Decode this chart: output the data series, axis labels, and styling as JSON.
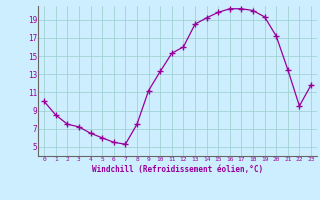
{
  "x": [
    0,
    1,
    2,
    3,
    4,
    5,
    6,
    7,
    8,
    9,
    10,
    11,
    12,
    13,
    14,
    15,
    16,
    17,
    18,
    19,
    20,
    21,
    22,
    23
  ],
  "y": [
    10,
    8.5,
    7.5,
    7.2,
    6.5,
    6.0,
    5.5,
    5.3,
    7.5,
    11.2,
    13.3,
    15.3,
    16.0,
    18.5,
    19.2,
    19.8,
    20.2,
    20.2,
    20.0,
    19.3,
    17.2,
    13.5,
    9.5,
    11.8
  ],
  "line_color": "#990099",
  "marker": "+",
  "marker_size": 4,
  "bg_color": "#cceeff",
  "grid_color": "#99cccc",
  "xlabel": "Windchill (Refroidissement éolien,°C)",
  "xlabel_color": "#990099",
  "tick_color": "#990099",
  "ylim": [
    4,
    20.5
  ],
  "xlim": [
    -0.5,
    23.5
  ],
  "yticks": [
    5,
    7,
    9,
    11,
    13,
    15,
    17,
    19
  ],
  "xticks": [
    0,
    1,
    2,
    3,
    4,
    5,
    6,
    7,
    8,
    9,
    10,
    11,
    12,
    13,
    14,
    15,
    16,
    17,
    18,
    19,
    20,
    21,
    22,
    23
  ],
  "xtick_labels": [
    "0",
    "1",
    "2",
    "3",
    "4",
    "5",
    "6",
    "7",
    "8",
    "9",
    "10",
    "11",
    "12",
    "13",
    "14",
    "15",
    "16",
    "17",
    "18",
    "19",
    "20",
    "21",
    "22",
    "23"
  ]
}
